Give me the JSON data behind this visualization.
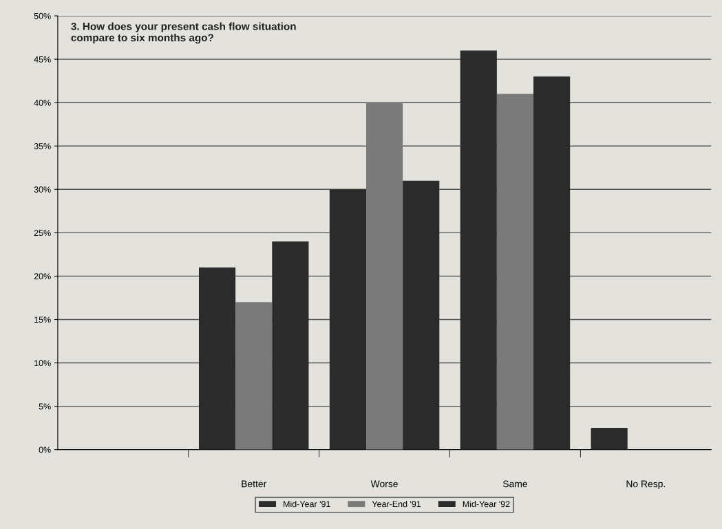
{
  "chart_data": {
    "type": "bar",
    "title": "3. How does your present cash flow situation\ncompare to six months ago?",
    "categories": [
      null,
      "Better",
      "Worse",
      "Same",
      "No Resp."
    ],
    "series": [
      {
        "name": "Mid-Year '91",
        "color": "#2b2b2b",
        "values": [
          null,
          21,
          30,
          46,
          2.5
        ]
      },
      {
        "name": "Year-End '91",
        "color": "#7a7a7a",
        "values": [
          null,
          17,
          40,
          41,
          null
        ]
      },
      {
        "name": "Mid-Year '92",
        "color": "#2b2b2b",
        "values": [
          null,
          24,
          31,
          43,
          null
        ]
      }
    ],
    "ylim": [
      0,
      50
    ],
    "yticks": [
      {
        "value": 0,
        "label": "0%"
      },
      {
        "value": 5,
        "label": "5%"
      },
      {
        "value": 10,
        "label": "10%"
      },
      {
        "value": 15,
        "label": "15%"
      },
      {
        "value": 20,
        "label": "20%"
      },
      {
        "value": 25,
        "label": "25%"
      },
      {
        "value": 30,
        "label": "30%"
      },
      {
        "value": 35,
        "label": "35%"
      },
      {
        "value": 40,
        "label": "40%"
      },
      {
        "value": 45,
        "label": "45%"
      },
      {
        "value": 50,
        "label": "50%"
      }
    ],
    "grid": "y",
    "legend": "bottom"
  }
}
